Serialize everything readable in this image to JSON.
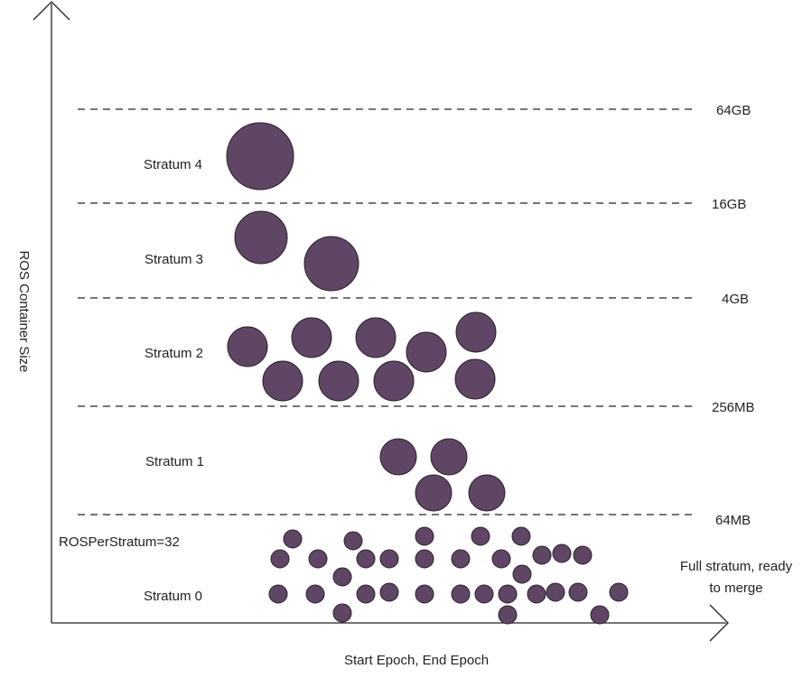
{
  "axes": {
    "y_label": "ROS Container Size",
    "x_label": "Start Epoch, End Epoch"
  },
  "thresholds": [
    {
      "label": "64GB"
    },
    {
      "label": "16GB"
    },
    {
      "label": "4GB"
    },
    {
      "label": "256MB"
    },
    {
      "label": "64MB"
    }
  ],
  "strata": [
    {
      "label": "Stratum 4",
      "container_count": 1
    },
    {
      "label": "Stratum 3",
      "container_count": 2
    },
    {
      "label": "Stratum 2",
      "container_count": 9
    },
    {
      "label": "Stratum 1",
      "container_count": 4
    },
    {
      "label": "Stratum 0",
      "container_count": 32
    }
  ],
  "ros_per_stratum": "ROSPerStratum=32",
  "annotation": {
    "line1": "Full stratum, ready",
    "line2": "to merge"
  },
  "colors": {
    "container_fill": "#5f4664",
    "container_stroke": "#2b1f2e",
    "line": "#222222"
  }
}
